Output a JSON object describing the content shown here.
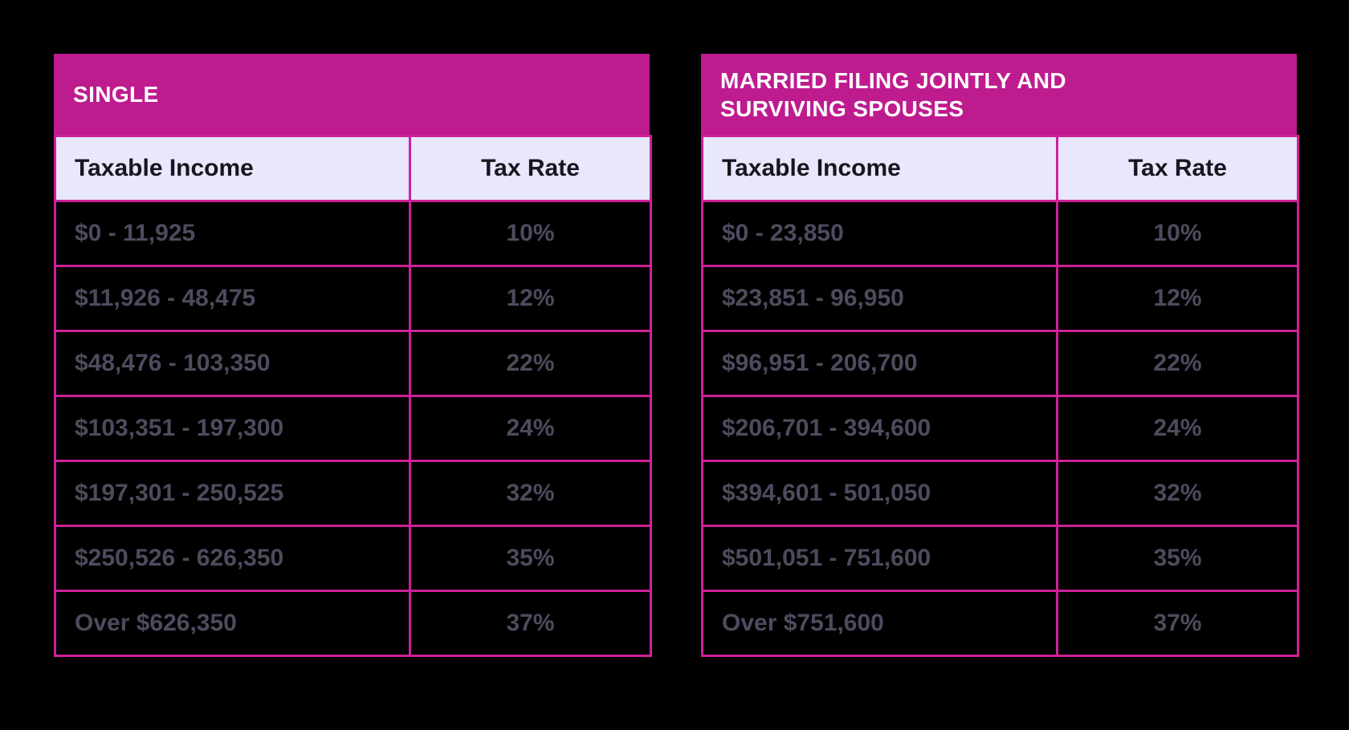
{
  "page": {
    "background_color": "#000000",
    "accent_color": "#BE1C8E",
    "border_color": "#CE2197",
    "header_row_color": "#E8E7FB",
    "header_text_color": "#16161E",
    "row_text_color": "#4C4C5E",
    "title_text_color": "#FFFFFF"
  },
  "chart_data": [
    {
      "type": "table",
      "title": "SINGLE",
      "columns": [
        "Taxable Income",
        "Tax Rate"
      ],
      "rows": [
        [
          "$0 - 11,925",
          "10%"
        ],
        [
          "$11,926 - 48,475",
          "12%"
        ],
        [
          "$48,476 - 103,350",
          "22%"
        ],
        [
          "$103,351 - 197,300",
          "24%"
        ],
        [
          "$197,301 - 250,525",
          "32%"
        ],
        [
          "$250,526 - 626,350",
          "35%"
        ],
        [
          "Over $626,350",
          "37%"
        ]
      ]
    },
    {
      "type": "table",
      "title": "MARRIED FILING JOINTLY AND SURVIVING SPOUSES",
      "columns": [
        "Taxable Income",
        "Tax Rate"
      ],
      "rows": [
        [
          "$0 - 23,850",
          "10%"
        ],
        [
          "$23,851 - 96,950",
          "12%"
        ],
        [
          "$96,951 - 206,700",
          "22%"
        ],
        [
          "$206,701 - 394,600",
          "24%"
        ],
        [
          "$394,601 - 501,050",
          "32%"
        ],
        [
          "$501,051 - 751,600",
          "35%"
        ],
        [
          "Over $751,600",
          "37%"
        ]
      ]
    }
  ]
}
